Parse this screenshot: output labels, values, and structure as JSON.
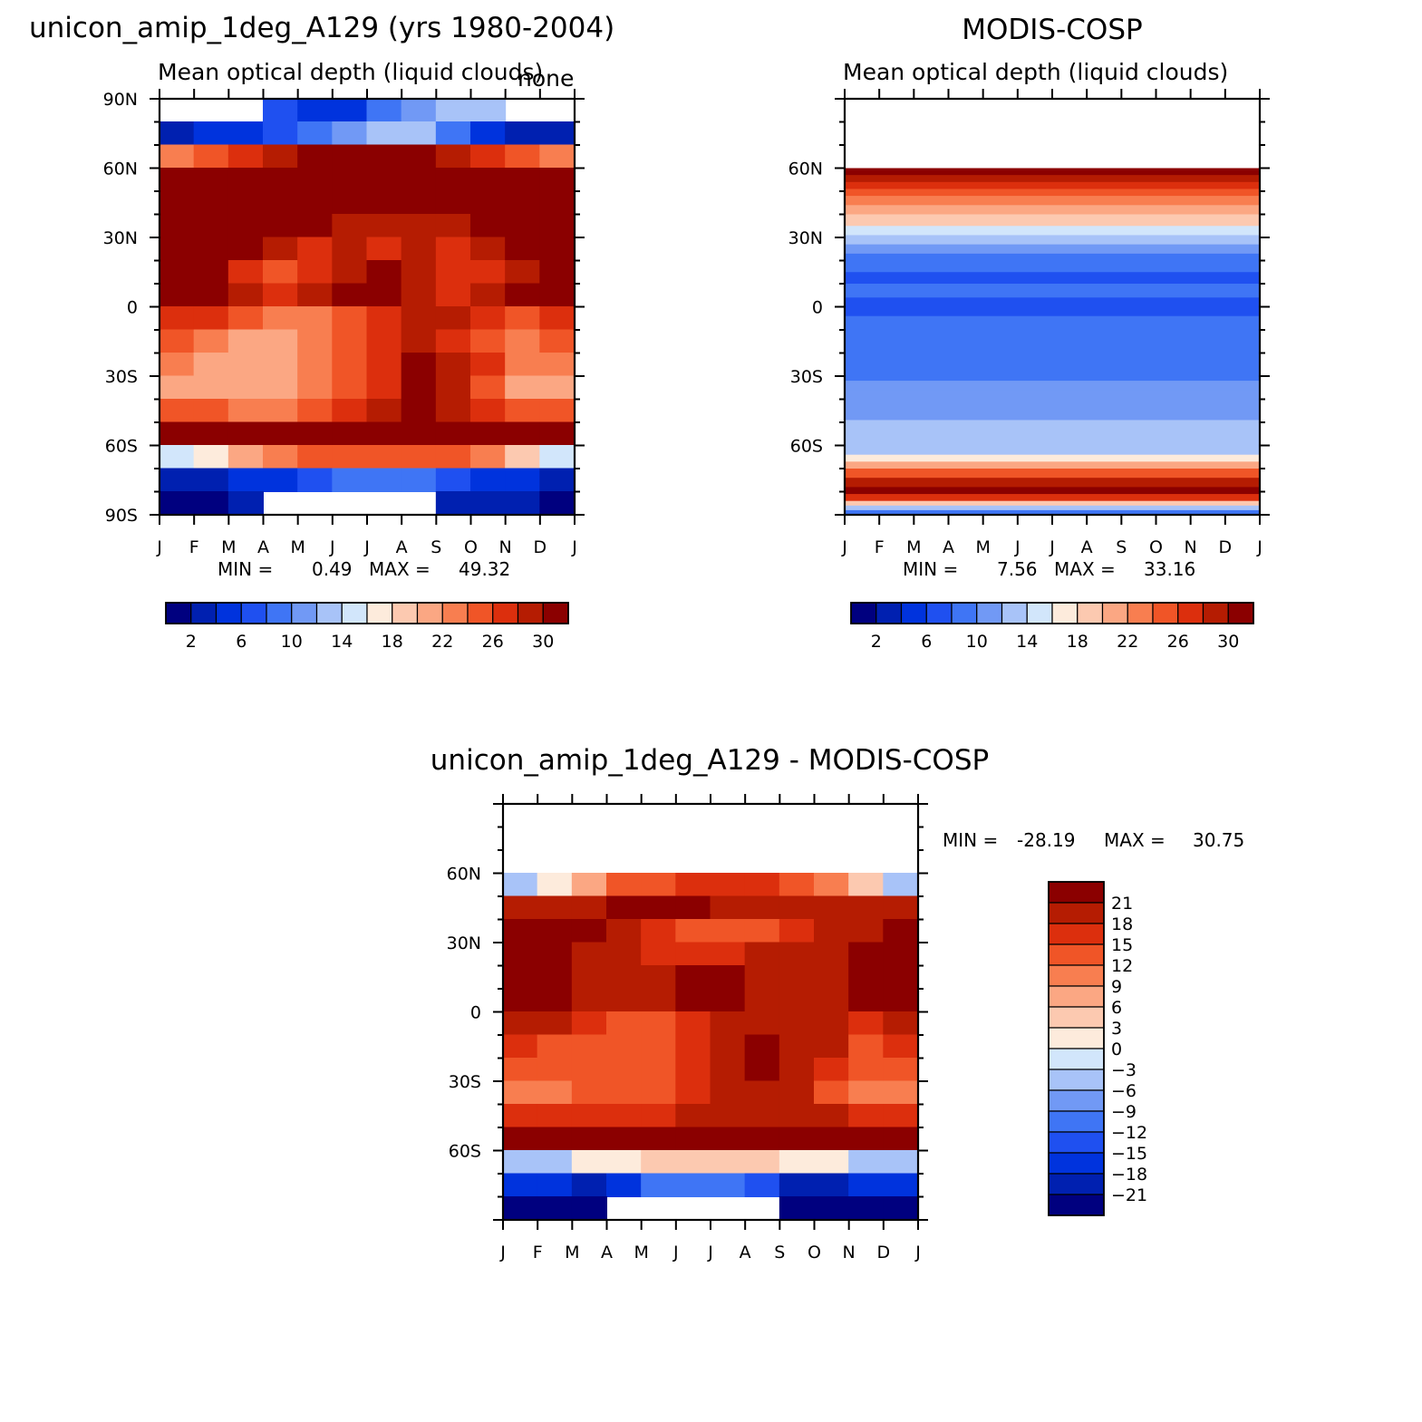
{
  "figure": {
    "main_title": "unicon_amip_1deg_A129 (yrs 1980-2004)",
    "obs_title": "MODIS-COSP",
    "diff_title": "unicon_amip_1deg_A129 - MODIS-COSP",
    "overlay_text": "none"
  },
  "chart_data": [
    {
      "type": "heatmap",
      "panel": "model",
      "title": "unicon_amip_1deg_A129 (yrs 1980-2004)",
      "subtitle": "Mean optical depth (liquid clouds)",
      "x_categories": [
        "J",
        "F",
        "M",
        "A",
        "M",
        "J",
        "J",
        "A",
        "S",
        "O",
        "N",
        "D",
        "J"
      ],
      "y_ticks": [
        "90N",
        "60N",
        "30N",
        "0",
        "30S",
        "60S",
        "90S"
      ],
      "ylim": [
        -90,
        90
      ],
      "min_label": "MIN =",
      "min_value": "0.49",
      "max_label": "MAX =",
      "max_value": "49.32",
      "colorbar_labels": [
        "2",
        "6",
        "10",
        "14",
        "18",
        "22",
        "26",
        "30"
      ],
      "latitudes": [
        85,
        75,
        65,
        55,
        45,
        35,
        25,
        15,
        5,
        -5,
        -15,
        -25,
        -35,
        -45,
        -55,
        -65,
        -75,
        -85
      ],
      "values": [
        [
          -1,
          -1,
          -1,
          6,
          4,
          4,
          8,
          10,
          12,
          12,
          -1,
          -1
        ],
        [
          2,
          4,
          5,
          6,
          9,
          10,
          12,
          12,
          9,
          5,
          3,
          3
        ],
        [
          22,
          24,
          26,
          28,
          30,
          30,
          30,
          30,
          28,
          26,
          24,
          22
        ],
        [
          31,
          31,
          31,
          31,
          31,
          31,
          31,
          31,
          31,
          31,
          31,
          31
        ],
        [
          31,
          31,
          31,
          31,
          31,
          31,
          31,
          31,
          31,
          31,
          31,
          31
        ],
        [
          31,
          31,
          31,
          31,
          31,
          29,
          29,
          29,
          29,
          31,
          31,
          31
        ],
        [
          31,
          31,
          31,
          29,
          27,
          29,
          27,
          29,
          27,
          29,
          31,
          31
        ],
        [
          31,
          31,
          27,
          25,
          27,
          29,
          31,
          29,
          27,
          27,
          29,
          31
        ],
        [
          31,
          31,
          29,
          27,
          29,
          31,
          31,
          29,
          27,
          29,
          31,
          31
        ],
        [
          27,
          27,
          25,
          23,
          23,
          25,
          27,
          29,
          29,
          27,
          25,
          27
        ],
        [
          25,
          23,
          21,
          21,
          23,
          25,
          27,
          29,
          27,
          25,
          23,
          25
        ],
        [
          23,
          21,
          21,
          21,
          23,
          25,
          27,
          31,
          29,
          27,
          23,
          23
        ],
        [
          21,
          21,
          21,
          21,
          23,
          25,
          27,
          31,
          29,
          25,
          21,
          21
        ],
        [
          25,
          25,
          23,
          23,
          25,
          27,
          29,
          31,
          29,
          27,
          25,
          25
        ],
        [
          31,
          31,
          31,
          31,
          31,
          31,
          31,
          31,
          31,
          31,
          31,
          31
        ],
        [
          14,
          16,
          20,
          22,
          24,
          24,
          24,
          24,
          24,
          22,
          18,
          14
        ],
        [
          3,
          3,
          4,
          5,
          6,
          8,
          8,
          8,
          6,
          5,
          4,
          3
        ],
        [
          1,
          1,
          2,
          -1,
          -1,
          -1,
          -1,
          -1,
          2,
          2,
          2,
          1
        ]
      ]
    },
    {
      "type": "heatmap",
      "panel": "obs",
      "title": "MODIS-COSP",
      "subtitle": "Mean optical depth (liquid clouds)",
      "x_categories": [
        "J",
        "F",
        "M",
        "A",
        "M",
        "J",
        "J",
        "A",
        "S",
        "O",
        "N",
        "D",
        "J"
      ],
      "y_ticks": [
        "60N",
        "30N",
        "0",
        "30S",
        "60S"
      ],
      "ylim": [
        -90,
        90
      ],
      "min_label": "MIN =",
      "min_value": "7.56",
      "max_label": "MAX =",
      "max_value": "33.16",
      "colorbar_labels": [
        "2",
        "6",
        "10",
        "14",
        "18",
        "22",
        "26",
        "30"
      ],
      "latitude_bands": [
        {
          "from": 60,
          "to": 57,
          "value": 31
        },
        {
          "from": 57,
          "to": 54,
          "value": 29
        },
        {
          "from": 54,
          "to": 51,
          "value": 27
        },
        {
          "from": 51,
          "to": 48,
          "value": 25
        },
        {
          "from": 48,
          "to": 44,
          "value": 23
        },
        {
          "from": 44,
          "to": 40,
          "value": 21
        },
        {
          "from": 40,
          "to": 35,
          "value": 19
        },
        {
          "from": 35,
          "to": 31,
          "value": 15
        },
        {
          "from": 31,
          "to": 27,
          "value": 13
        },
        {
          "from": 27,
          "to": 23,
          "value": 11
        },
        {
          "from": 23,
          "to": 20,
          "value": 9
        },
        {
          "from": 20,
          "to": 15,
          "value": 9
        },
        {
          "from": 15,
          "to": 10,
          "value": 7
        },
        {
          "from": 10,
          "to": 4,
          "value": 9
        },
        {
          "from": 4,
          "to": -4,
          "value": 7
        },
        {
          "from": -4,
          "to": -10,
          "value": 9
        },
        {
          "from": -10,
          "to": -32,
          "value": 9
        },
        {
          "from": -32,
          "to": -36,
          "value": 11
        },
        {
          "from": -36,
          "to": -49,
          "value": 11
        },
        {
          "from": -49,
          "to": -58,
          "value": 13
        },
        {
          "from": -58,
          "to": -64,
          "value": 13
        },
        {
          "from": -64,
          "to": -67,
          "value": 17
        },
        {
          "from": -67,
          "to": -70,
          "value": 21
        },
        {
          "from": -70,
          "to": -74,
          "value": 25
        },
        {
          "from": -74,
          "to": -78,
          "value": 29
        },
        {
          "from": -78,
          "to": -81,
          "value": 31
        },
        {
          "from": -81,
          "to": -84,
          "value": 27
        },
        {
          "from": -84,
          "to": -86,
          "value": 19
        },
        {
          "from": -86,
          "to": -88,
          "value": 13
        },
        {
          "from": -88,
          "to": -90,
          "value": 9
        }
      ]
    },
    {
      "type": "heatmap",
      "panel": "difference",
      "title": "unicon_amip_1deg_A129 - MODIS-COSP",
      "x_categories": [
        "J",
        "F",
        "M",
        "A",
        "M",
        "J",
        "J",
        "A",
        "S",
        "O",
        "N",
        "D",
        "J"
      ],
      "y_ticks": [
        "60N",
        "30N",
        "0",
        "30S",
        "60S"
      ],
      "ylim": [
        -90,
        90
      ],
      "min_label": "MIN =",
      "min_value": "-28.19",
      "max_label": "MAX =",
      "max_value": "30.75",
      "colorbar_labels": [
        "21",
        "18",
        "15",
        "12",
        "9",
        "6",
        "3",
        "0",
        "-3",
        "-6",
        "-9",
        "-12",
        "-15",
        "-18",
        "-21"
      ],
      "latitudes": [
        55,
        45,
        35,
        25,
        15,
        5,
        -5,
        -15,
        -25,
        -35,
        -45,
        -55,
        -65,
        -75,
        -85
      ],
      "values": [
        [
          -4,
          2,
          6,
          12,
          14,
          16,
          16,
          16,
          14,
          10,
          4,
          -4
        ],
        [
          20,
          20,
          18,
          22,
          22,
          22,
          20,
          20,
          20,
          20,
          20,
          20
        ],
        [
          22,
          22,
          22,
          20,
          16,
          12,
          12,
          14,
          16,
          18,
          20,
          22
        ],
        [
          22,
          22,
          20,
          18,
          16,
          16,
          16,
          18,
          18,
          20,
          22,
          22
        ],
        [
          22,
          22,
          18,
          18,
          20,
          22,
          22,
          20,
          18,
          20,
          22,
          22
        ],
        [
          22,
          22,
          20,
          18,
          20,
          22,
          22,
          20,
          18,
          20,
          22,
          22
        ],
        [
          18,
          18,
          16,
          14,
          14,
          16,
          18,
          20,
          20,
          18,
          16,
          18
        ],
        [
          16,
          14,
          12,
          12,
          14,
          16,
          18,
          22,
          20,
          18,
          14,
          16
        ],
        [
          12,
          12,
          12,
          12,
          14,
          16,
          18,
          22,
          20,
          16,
          12,
          12
        ],
        [
          10,
          10,
          12,
          12,
          14,
          16,
          18,
          20,
          18,
          14,
          10,
          10
        ],
        [
          16,
          16,
          16,
          16,
          16,
          18,
          20,
          20,
          20,
          18,
          16,
          16
        ],
        [
          22,
          22,
          22,
          22,
          22,
          22,
          22,
          22,
          22,
          22,
          22,
          22
        ],
        [
          -6,
          -4,
          0,
          2,
          4,
          4,
          4,
          4,
          2,
          0,
          -4,
          -6
        ],
        [
          -18,
          -18,
          -20,
          -16,
          -12,
          -10,
          -10,
          -14,
          -20,
          -20,
          -18,
          -18
        ],
        [
          -22,
          -22,
          -24,
          -99,
          -99,
          -99,
          -99,
          -99,
          -22,
          -22,
          -22,
          -22
        ]
      ]
    }
  ],
  "colors": {
    "model_scale": [
      "#00007f",
      "#0020b0",
      "#0033dd",
      "#1f50f0",
      "#3f75f5",
      "#7199f5",
      "#a8c3f8",
      "#d2e6fb",
      "#fdebdc",
      "#fcc9b0",
      "#fba783",
      "#f87e50",
      "#f05527",
      "#dc2f0d",
      "#b51c02",
      "#8b0000"
    ],
    "diff_scale": [
      "#00007f",
      "#0020b0",
      "#0033dd",
      "#1f50f0",
      "#3f75f5",
      "#7199f5",
      "#a8c3f8",
      "#d2e6fb",
      "#fdebdc",
      "#fcc9b0",
      "#fba783",
      "#f87e50",
      "#f05527",
      "#dc2f0d",
      "#b51c02",
      "#8b0000"
    ]
  }
}
